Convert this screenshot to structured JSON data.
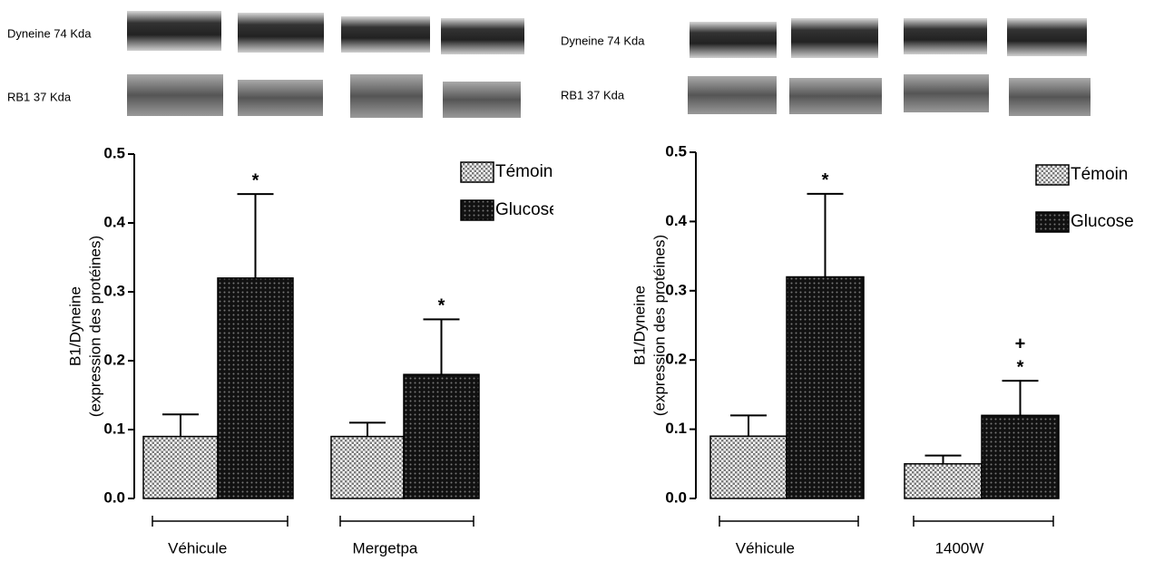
{
  "chart_data": [
    {
      "type": "bar",
      "blots": [
        "Dyneine 74 Kda",
        "RB1 37 Kda"
      ],
      "ylabel": [
        "B1/Dyneine",
        "(expression des protéines)"
      ],
      "categories": [
        "Véhicule",
        "Mergetpa"
      ],
      "series": [
        {
          "name": "Témoin",
          "color": "#b8b8b8",
          "values": [
            0.09,
            0.09
          ],
          "errors": [
            0.032,
            0.02
          ]
        },
        {
          "name": "Glucose",
          "color": "#1a1a1a",
          "values": [
            0.32,
            0.18
          ],
          "errors": [
            0.122,
            0.08
          ],
          "significance": [
            "*",
            "*"
          ]
        }
      ],
      "ylim": [
        0,
        0.5
      ],
      "yticks": [
        {
          "value": 0,
          "label": "0.0"
        },
        0.1,
        0.2,
        0.3,
        0.4,
        0.5
      ]
    },
    {
      "type": "bar",
      "blots": [
        "Dyneine 74 Kda",
        "RB1 37 Kda"
      ],
      "ylabel": [
        "B1/Dyneine",
        "(expression des protéines)"
      ],
      "categories": [
        "Véhicule",
        "1400W"
      ],
      "series": [
        {
          "name": "Témoin",
          "color": "#b8b8b8",
          "values": [
            0.09,
            0.05
          ],
          "errors": [
            0.03,
            0.012
          ]
        },
        {
          "name": "Glucose",
          "color": "#1a1a1a",
          "values": [
            0.32,
            0.12
          ],
          "errors": [
            0.12,
            0.05
          ],
          "significance": [
            "*",
            "*"
          ],
          "significance2": [
            null,
            "+"
          ]
        }
      ],
      "ylim": [
        0,
        0.5
      ],
      "yticks": [
        {
          "value": 0,
          "label": "0.0"
        },
        0.1,
        0.2,
        0.3,
        0.4,
        0.5
      ]
    }
  ]
}
